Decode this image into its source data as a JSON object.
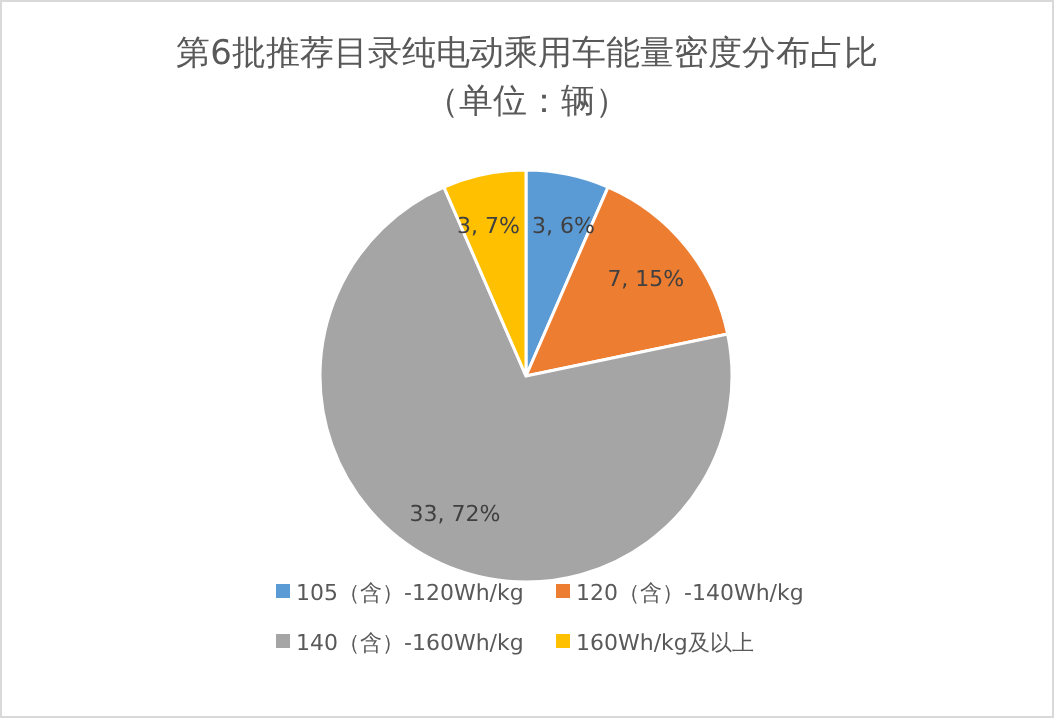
{
  "chart_data": {
    "type": "pie",
    "title": "第6批推荐目录纯电动乘用车能量密度分布占比",
    "subtitle": "（单位：辆）",
    "categories": [
      "105（含）-120Wh/kg",
      "120（含）-140Wh/kg",
      "140（含）-160Wh/kg",
      "160Wh/kg及以上"
    ],
    "values": [
      3,
      7,
      33,
      3
    ],
    "colors": [
      "#5b9bd5",
      "#ed7d31",
      "#a5a5a5",
      "#ffc000"
    ],
    "value_labels": [
      "3, 6%",
      "7, 15%",
      "33, 72%",
      "3, 7%"
    ],
    "legend": "bottom"
  }
}
